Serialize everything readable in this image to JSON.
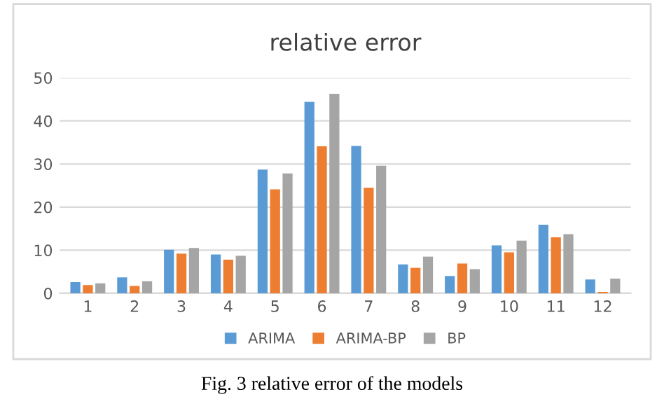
{
  "chart_data": {
    "type": "bar",
    "title": "relative error",
    "categories": [
      "1",
      "2",
      "3",
      "4",
      "5",
      "6",
      "7",
      "8",
      "9",
      "10",
      "11",
      "12"
    ],
    "series": [
      {
        "name": "ARIMA",
        "color": "#5b9bd5",
        "values": [
          2.6,
          3.7,
          10.1,
          9.0,
          28.7,
          44.4,
          34.2,
          6.7,
          4.0,
          11.1,
          15.9,
          3.2
        ]
      },
      {
        "name": "ARIMA-BP",
        "color": "#ed7d31",
        "values": [
          1.9,
          1.7,
          9.2,
          7.8,
          24.1,
          34.1,
          24.5,
          5.9,
          6.9,
          9.5,
          13.0,
          0.3
        ]
      },
      {
        "name": "BP",
        "color": "#a5a5a5",
        "values": [
          2.3,
          2.8,
          10.5,
          8.7,
          27.8,
          46.3,
          29.6,
          8.5,
          5.6,
          12.2,
          13.7,
          3.4
        ]
      }
    ],
    "ylim": [
      0,
      50
    ],
    "yticks": [
      0,
      10,
      20,
      30,
      40,
      50
    ],
    "grid": "y",
    "legend": "bottom",
    "annotations": [
      "Fig. 3 relative error of the models"
    ]
  }
}
